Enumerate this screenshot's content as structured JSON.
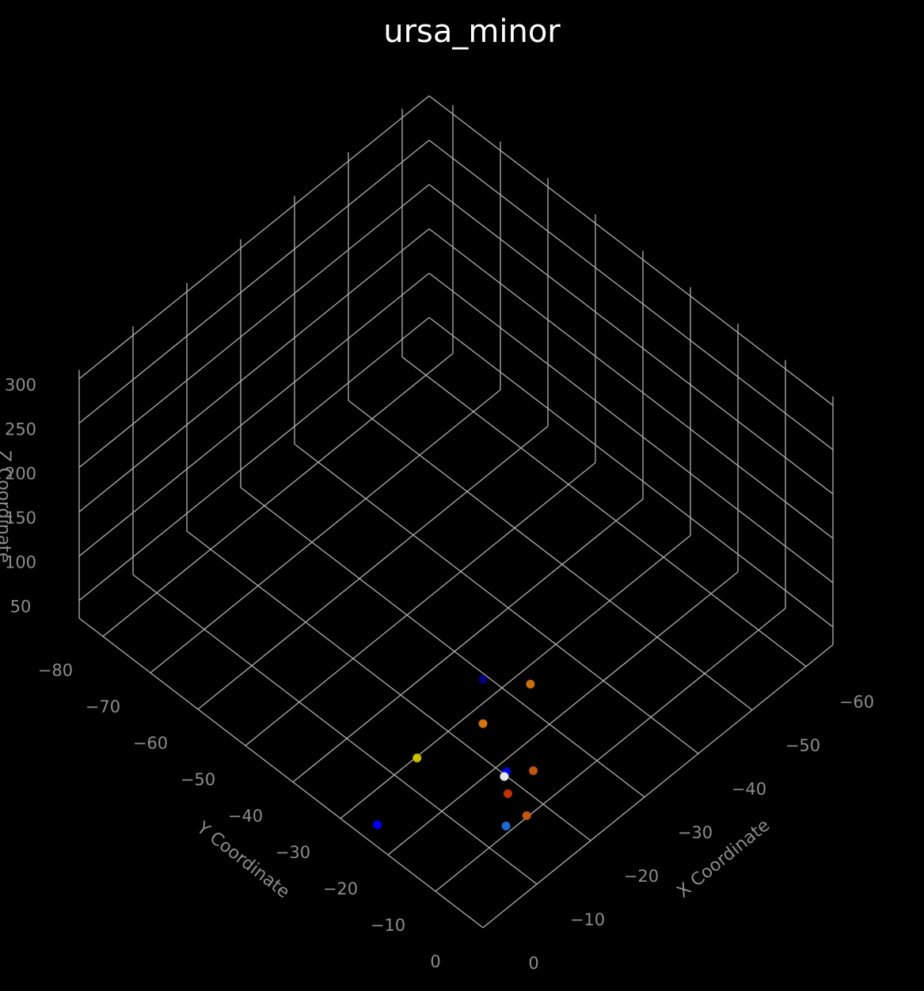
{
  "chart_data": {
    "type": "scatter",
    "projection": "3d",
    "title": "ursa_minor",
    "xlabel": "X Coordinate",
    "ylabel": "Y Coordinate",
    "zlabel": "Z Coordinate",
    "background": "#000000",
    "grid": true,
    "xlim": [
      0,
      -65
    ],
    "ylim": [
      0,
      -85
    ],
    "zlim": [
      30,
      310
    ],
    "xticks": [
      "0",
      "−10",
      "−20",
      "−30",
      "−40",
      "−50",
      "−60"
    ],
    "yticks": [
      "0",
      "−10",
      "−20",
      "−30",
      "−40",
      "−50",
      "−60",
      "−70",
      "−80"
    ],
    "zticks": [
      "50",
      "100",
      "150",
      "200",
      "250",
      "300"
    ],
    "points": [
      {
        "x": 0,
        "y": 0,
        "z": 310,
        "color": "#000080"
      },
      {
        "x": -0.5,
        "y": -22.8,
        "z": 50,
        "color": "#0000ff"
      },
      {
        "x": -30.6,
        "y": -24.7,
        "z": 53,
        "color": "#d4760a"
      },
      {
        "x": -22.5,
        "y": -25.5,
        "z": 45,
        "color": "#e07a0f"
      },
      {
        "x": -12.9,
        "y": -28.5,
        "z": 41,
        "color": "#d4c800"
      },
      {
        "x": -19.2,
        "y": -16.8,
        "z": 43,
        "color": "#0000e0"
      },
      {
        "x": -18.6,
        "y": -16.6,
        "z": 41,
        "color": "#f2f2f2"
      },
      {
        "x": -21.7,
        "y": -14.0,
        "z": 43,
        "color": "#c95a10"
      },
      {
        "x": -16.8,
        "y": -13.8,
        "z": 42,
        "color": "#cc3300"
      },
      {
        "x": -15.7,
        "y": -8.6,
        "z": 44,
        "color": "#cc5a10"
      },
      {
        "x": -12.4,
        "y": -9.2,
        "z": 46,
        "color": "#1f6fe0"
      }
    ]
  }
}
